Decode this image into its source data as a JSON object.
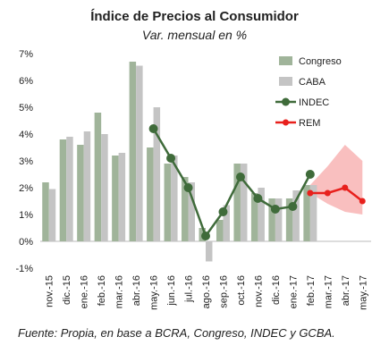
{
  "title": "Índice de Precios al Consumidor",
  "subtitle": "Var. mensual en %",
  "source": "Fuente: Propia, en base a BCRA, Congreso, INDEC y GCBA.",
  "chart_data": {
    "type": "bar",
    "categories": [
      "nov.-15",
      "dic.-15",
      "ene.-16",
      "feb.-16",
      "mar.-16",
      "abr.-16",
      "may.-16",
      "jun.-16",
      "jul.-16",
      "ago.-16",
      "sep.-16",
      "oct.-16",
      "nov.-16",
      "dic.-16",
      "ene.-17",
      "feb.-17",
      "mar.-17",
      "abr.-17",
      "may.-17"
    ],
    "ylim": [
      -1,
      7
    ],
    "yticks": [
      "-1%",
      "0%",
      "1%",
      "2%",
      "3%",
      "4%",
      "5%",
      "6%",
      "7%"
    ],
    "series": [
      {
        "name": "Congreso",
        "type": "bar",
        "color": "#a0b49a",
        "values": [
          2.2,
          3.8,
          3.6,
          4.8,
          3.2,
          6.7,
          3.5,
          2.9,
          2.4,
          0.5,
          0.8,
          2.9,
          1.8,
          1.6,
          1.6,
          2.1,
          null,
          null,
          null
        ]
      },
      {
        "name": "CABA",
        "type": "bar",
        "color": "#c4c4c4",
        "values": [
          1.95,
          3.9,
          4.1,
          4.0,
          3.3,
          6.55,
          5.0,
          3.2,
          2.2,
          -0.75,
          1.35,
          2.9,
          2.0,
          1.6,
          1.9,
          2.1,
          null,
          null,
          null
        ]
      },
      {
        "name": "INDEC",
        "type": "line",
        "color": "#3f6b3a",
        "values": [
          null,
          null,
          null,
          null,
          null,
          null,
          4.2,
          3.1,
          2.0,
          0.2,
          1.1,
          2.4,
          1.6,
          1.2,
          1.3,
          2.5,
          null,
          null,
          null
        ]
      },
      {
        "name": "REM",
        "type": "line",
        "color": "#e8201c",
        "values": [
          null,
          null,
          null,
          null,
          null,
          null,
          null,
          null,
          null,
          null,
          null,
          null,
          null,
          null,
          null,
          1.8,
          1.8,
          2.0,
          1.5
        ]
      }
    ],
    "rem_band": {
      "categories": [
        "feb.-17",
        "mar.-17",
        "abr.-17",
        "may.-17"
      ],
      "upper": [
        2.1,
        2.8,
        3.6,
        3.0
      ],
      "lower": [
        1.8,
        1.4,
        1.1,
        1.0
      ],
      "color": "#f8b4b4"
    },
    "legend_position": "top-right"
  }
}
